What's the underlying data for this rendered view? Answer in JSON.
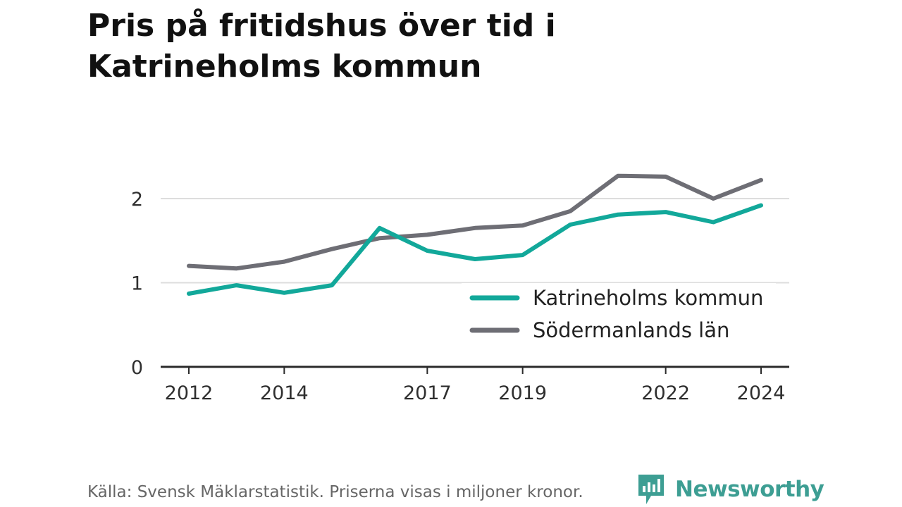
{
  "title": "Pris på fritidshus över tid i Katrineholms kommun",
  "source": "Källa: Svensk Mäklarstatistik. Priserna visas i miljoner kronor.",
  "brand": {
    "name": "Newsworthy",
    "icon": "newsworthy-logo-icon",
    "color": "#3d9e93"
  },
  "chart_data": {
    "type": "line",
    "x": [
      2012,
      2013,
      2014,
      2015,
      2016,
      2017,
      2018,
      2019,
      2020,
      2021,
      2022,
      2023,
      2024
    ],
    "x_tick_labels": [
      "2012",
      "2014",
      "2017",
      "2019",
      "2022",
      "2024"
    ],
    "x_tick_values": [
      2012,
      2014,
      2017,
      2019,
      2022,
      2024
    ],
    "y_ticks": [
      0,
      1,
      2
    ],
    "y_tick_labels": [
      "0",
      "1",
      "2"
    ],
    "ylim": [
      0,
      2.3
    ],
    "grid": "horizontal",
    "legend_position": "inside-bottom-right",
    "series": [
      {
        "name": "Katrineholms kommun",
        "color": "#12a89a",
        "values": [
          0.87,
          0.97,
          0.88,
          0.97,
          1.65,
          1.38,
          1.28,
          1.33,
          1.69,
          1.81,
          1.84,
          1.72,
          1.92
        ]
      },
      {
        "name": "Södermanlands län",
        "color": "#6e6e75",
        "values": [
          1.2,
          1.17,
          1.25,
          1.4,
          1.53,
          1.57,
          1.65,
          1.68,
          1.85,
          2.27,
          2.26,
          2.0,
          2.22
        ]
      }
    ]
  }
}
